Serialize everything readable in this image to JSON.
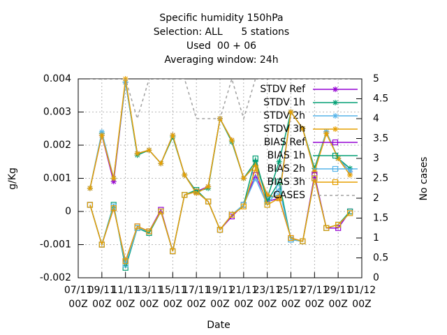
{
  "chart_data": {
    "type": "line",
    "title": "Specific humidity 150hPa",
    "subtitles": [
      "Selection: ALL      5 stations",
      "Used  00 + 06",
      "Averaging window: 24h"
    ],
    "xlabel": "Date",
    "ylabel": "g/Kg",
    "y2label": "No cases",
    "x": [
      1,
      2,
      3,
      4,
      5,
      6,
      7,
      8,
      9,
      10,
      11,
      12,
      13,
      14,
      15,
      16,
      17,
      18,
      19,
      20,
      21,
      22,
      23
    ],
    "xlim": [
      0,
      24
    ],
    "xticks": [
      {
        "value": 0,
        "label": "07/11\n00Z"
      },
      {
        "value": 2,
        "label": "09/11\n00Z"
      },
      {
        "value": 4,
        "label": "11/11\n00Z"
      },
      {
        "value": 6,
        "label": "13/11\n00Z"
      },
      {
        "value": 8,
        "label": "15/11\n00Z"
      },
      {
        "value": 10,
        "label": "17/11\n00Z"
      },
      {
        "value": 12,
        "label": "19/11\n00Z"
      },
      {
        "value": 14,
        "label": "21/11\n00Z"
      },
      {
        "value": 16,
        "label": "23/11\n00Z"
      },
      {
        "value": 18,
        "label": "25/11\n00Z"
      },
      {
        "value": 20,
        "label": "27/11\n00Z"
      },
      {
        "value": 22,
        "label": "29/11\n00Z"
      },
      {
        "value": 24,
        "label": "01/12\n00Z"
      }
    ],
    "ylim": [
      -0.002,
      0.004
    ],
    "yticks": [
      0.004,
      0.003,
      0.002,
      0.001,
      0,
      -0.001,
      -0.002
    ],
    "y2lim": [
      0,
      5
    ],
    "y2ticks": [
      5,
      4.5,
      4,
      3.5,
      3,
      2.5,
      2,
      1.5,
      1,
      0.5,
      0
    ],
    "grid": true,
    "legend": "top-right",
    "series": [
      {
        "name": "STDV Ref",
        "color": "#9400d3",
        "marker": "star",
        "values": [
          0.0007,
          0.0023,
          0.0009,
          0.0039,
          0.00175,
          0.00185,
          0.00145,
          0.0023,
          0.0011,
          0.0006,
          0.00075,
          0.0028,
          0.00215,
          0.001,
          0.0014,
          0.0005,
          0.0004,
          0.003,
          0.0025,
          0.0012,
          0.0024,
          0.0016,
          0.0012
        ]
      },
      {
        "name": "STDV 1h",
        "color": "#009e73",
        "marker": "star",
        "values": [
          0.0007,
          0.00235,
          0.001,
          0.0039,
          0.0017,
          0.00185,
          0.00145,
          0.00225,
          0.0011,
          0.0006,
          0.0007,
          0.0028,
          0.0021,
          0.001,
          0.0015,
          0.0004,
          0.0015,
          0.003,
          0.0025,
          0.0013,
          0.0024,
          0.0016,
          0.0013
        ]
      },
      {
        "name": "STDV 2h",
        "color": "#56b4e9",
        "marker": "star",
        "values": [
          0.0007,
          0.0024,
          0.001,
          0.0039,
          0.00175,
          0.00185,
          0.00145,
          0.0023,
          0.0011,
          0.00055,
          0.00075,
          0.0028,
          0.00215,
          0.001,
          0.0014,
          0.0004,
          0.0005,
          0.003,
          0.0025,
          0.0012,
          0.0024,
          0.0016,
          0.0012
        ]
      },
      {
        "name": "STDV 3h",
        "color": "#e69f00",
        "marker": "star",
        "values": [
          0.0007,
          0.0023,
          0.001,
          0.004,
          0.00175,
          0.00185,
          0.00145,
          0.0023,
          0.0011,
          0.00055,
          0.00075,
          0.0028,
          0.00215,
          0.001,
          0.0014,
          0.0005,
          0.0004,
          0.003,
          0.0025,
          0.0012,
          0.00235,
          0.0016,
          0.0011
        ]
      },
      {
        "name": "BIAS Ref",
        "color": "#9400d3",
        "marker": "square",
        "values": [
          0.0002,
          -0.001,
          0.0001,
          -0.0015,
          -0.00045,
          -0.0006,
          5e-05,
          -0.0012,
          0.0005,
          0.0006,
          0.0003,
          -0.00055,
          -0.00015,
          0.0002,
          0.0011,
          0.0003,
          0.0004,
          -0.0008,
          -0.0009,
          0.0011,
          -0.0005,
          -0.0005,
          0.0
        ]
      },
      {
        "name": "BIAS 1h",
        "color": "#009e73",
        "marker": "square",
        "values": [
          0.0002,
          -0.001,
          0.0002,
          -0.0017,
          -0.0005,
          -0.00065,
          0.0,
          -0.0012,
          0.0005,
          0.00065,
          0.0003,
          -0.00055,
          -0.0001,
          0.0002,
          0.0016,
          0.0003,
          0.0009,
          -0.00085,
          -0.0009,
          0.001,
          -0.0005,
          -0.0004,
          0.0
        ]
      },
      {
        "name": "BIAS 2h",
        "color": "#56b4e9",
        "marker": "square",
        "values": [
          0.0002,
          -0.001,
          0.00015,
          -0.0016,
          -0.0005,
          -0.0006,
          0.0,
          -0.0012,
          0.0005,
          0.0006,
          0.0003,
          -0.00055,
          -0.0001,
          0.0002,
          0.001,
          0.0002,
          0.0007,
          -0.00085,
          -0.0009,
          0.001,
          -0.0005,
          -0.0004,
          -5e-05
        ]
      },
      {
        "name": "BIAS 3h",
        "color": "#e69f00",
        "marker": "square",
        "values": [
          0.0002,
          -0.001,
          0.0001,
          -0.0015,
          -0.00045,
          -0.0006,
          0.0,
          -0.0012,
          0.0005,
          0.0006,
          0.0003,
          -0.00055,
          -0.0001,
          0.00015,
          0.0013,
          0.0002,
          0.0004,
          -0.0008,
          -0.0009,
          0.001,
          -0.0005,
          -0.0004,
          -5e-05
        ]
      },
      {
        "name": "CASES",
        "color": "#a0a0a0",
        "dashed": true,
        "axis": "y2",
        "values": [
          5,
          5,
          5,
          5,
          4,
          5,
          5,
          5,
          5,
          4,
          4,
          4,
          5,
          4,
          5,
          5,
          5,
          5,
          5,
          5,
          5,
          5,
          5
        ]
      }
    ]
  }
}
